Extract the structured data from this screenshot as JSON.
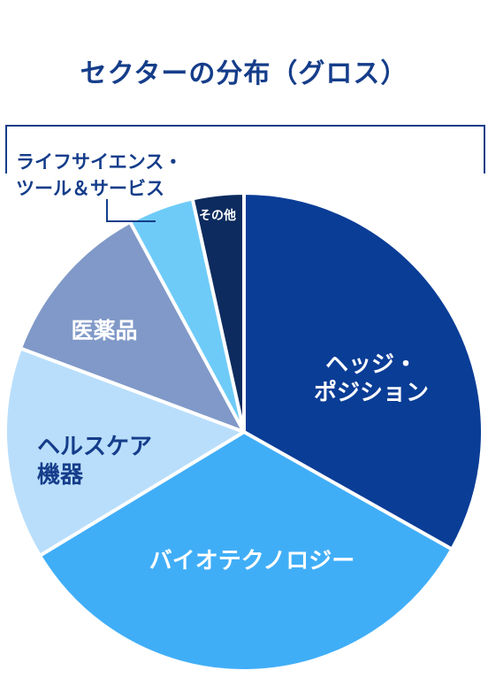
{
  "chart_data": {
    "type": "pie",
    "title": "セクターの分布（グロス）",
    "start_angle_deg": 0,
    "direction": "clockwise",
    "slices": [
      {
        "name": "ヘッジ・ポジション",
        "lines": [
          "ヘッジ・",
          "ポジション"
        ],
        "value": 33.5,
        "color": "#0a3d96",
        "label_color": "#ffffff",
        "label_position": "inside"
      },
      {
        "name": "バイオテクノロジー",
        "lines": [
          "バイオテクノロジー"
        ],
        "value": 33.5,
        "color": "#40aef7",
        "label_color": "#ffffff",
        "label_position": "inside"
      },
      {
        "name": "ヘルスケア機器",
        "lines": [
          "ヘルスケア",
          "機器"
        ],
        "value": 14.5,
        "color": "#b9defb",
        "label_color": "#153d8a",
        "label_position": "inside"
      },
      {
        "name": "医薬品",
        "lines": [
          "医薬品"
        ],
        "value": 11.5,
        "color": "#8099c8",
        "label_color": "#ffffff",
        "label_position": "inside"
      },
      {
        "name": "ライフサイエンス・ツール＆サービス",
        "lines": [
          "ライフサイエンス・",
          "ツール＆サービス"
        ],
        "value": 4.5,
        "color": "#6ecbf8",
        "label_color": "#153d8a",
        "label_position": "outside-callout"
      },
      {
        "name": "その他",
        "lines": [
          "その他"
        ],
        "value": 3.5,
        "color": "#0d2b5e",
        "label_color": "#ffffff",
        "label_position": "inside"
      }
    ]
  }
}
